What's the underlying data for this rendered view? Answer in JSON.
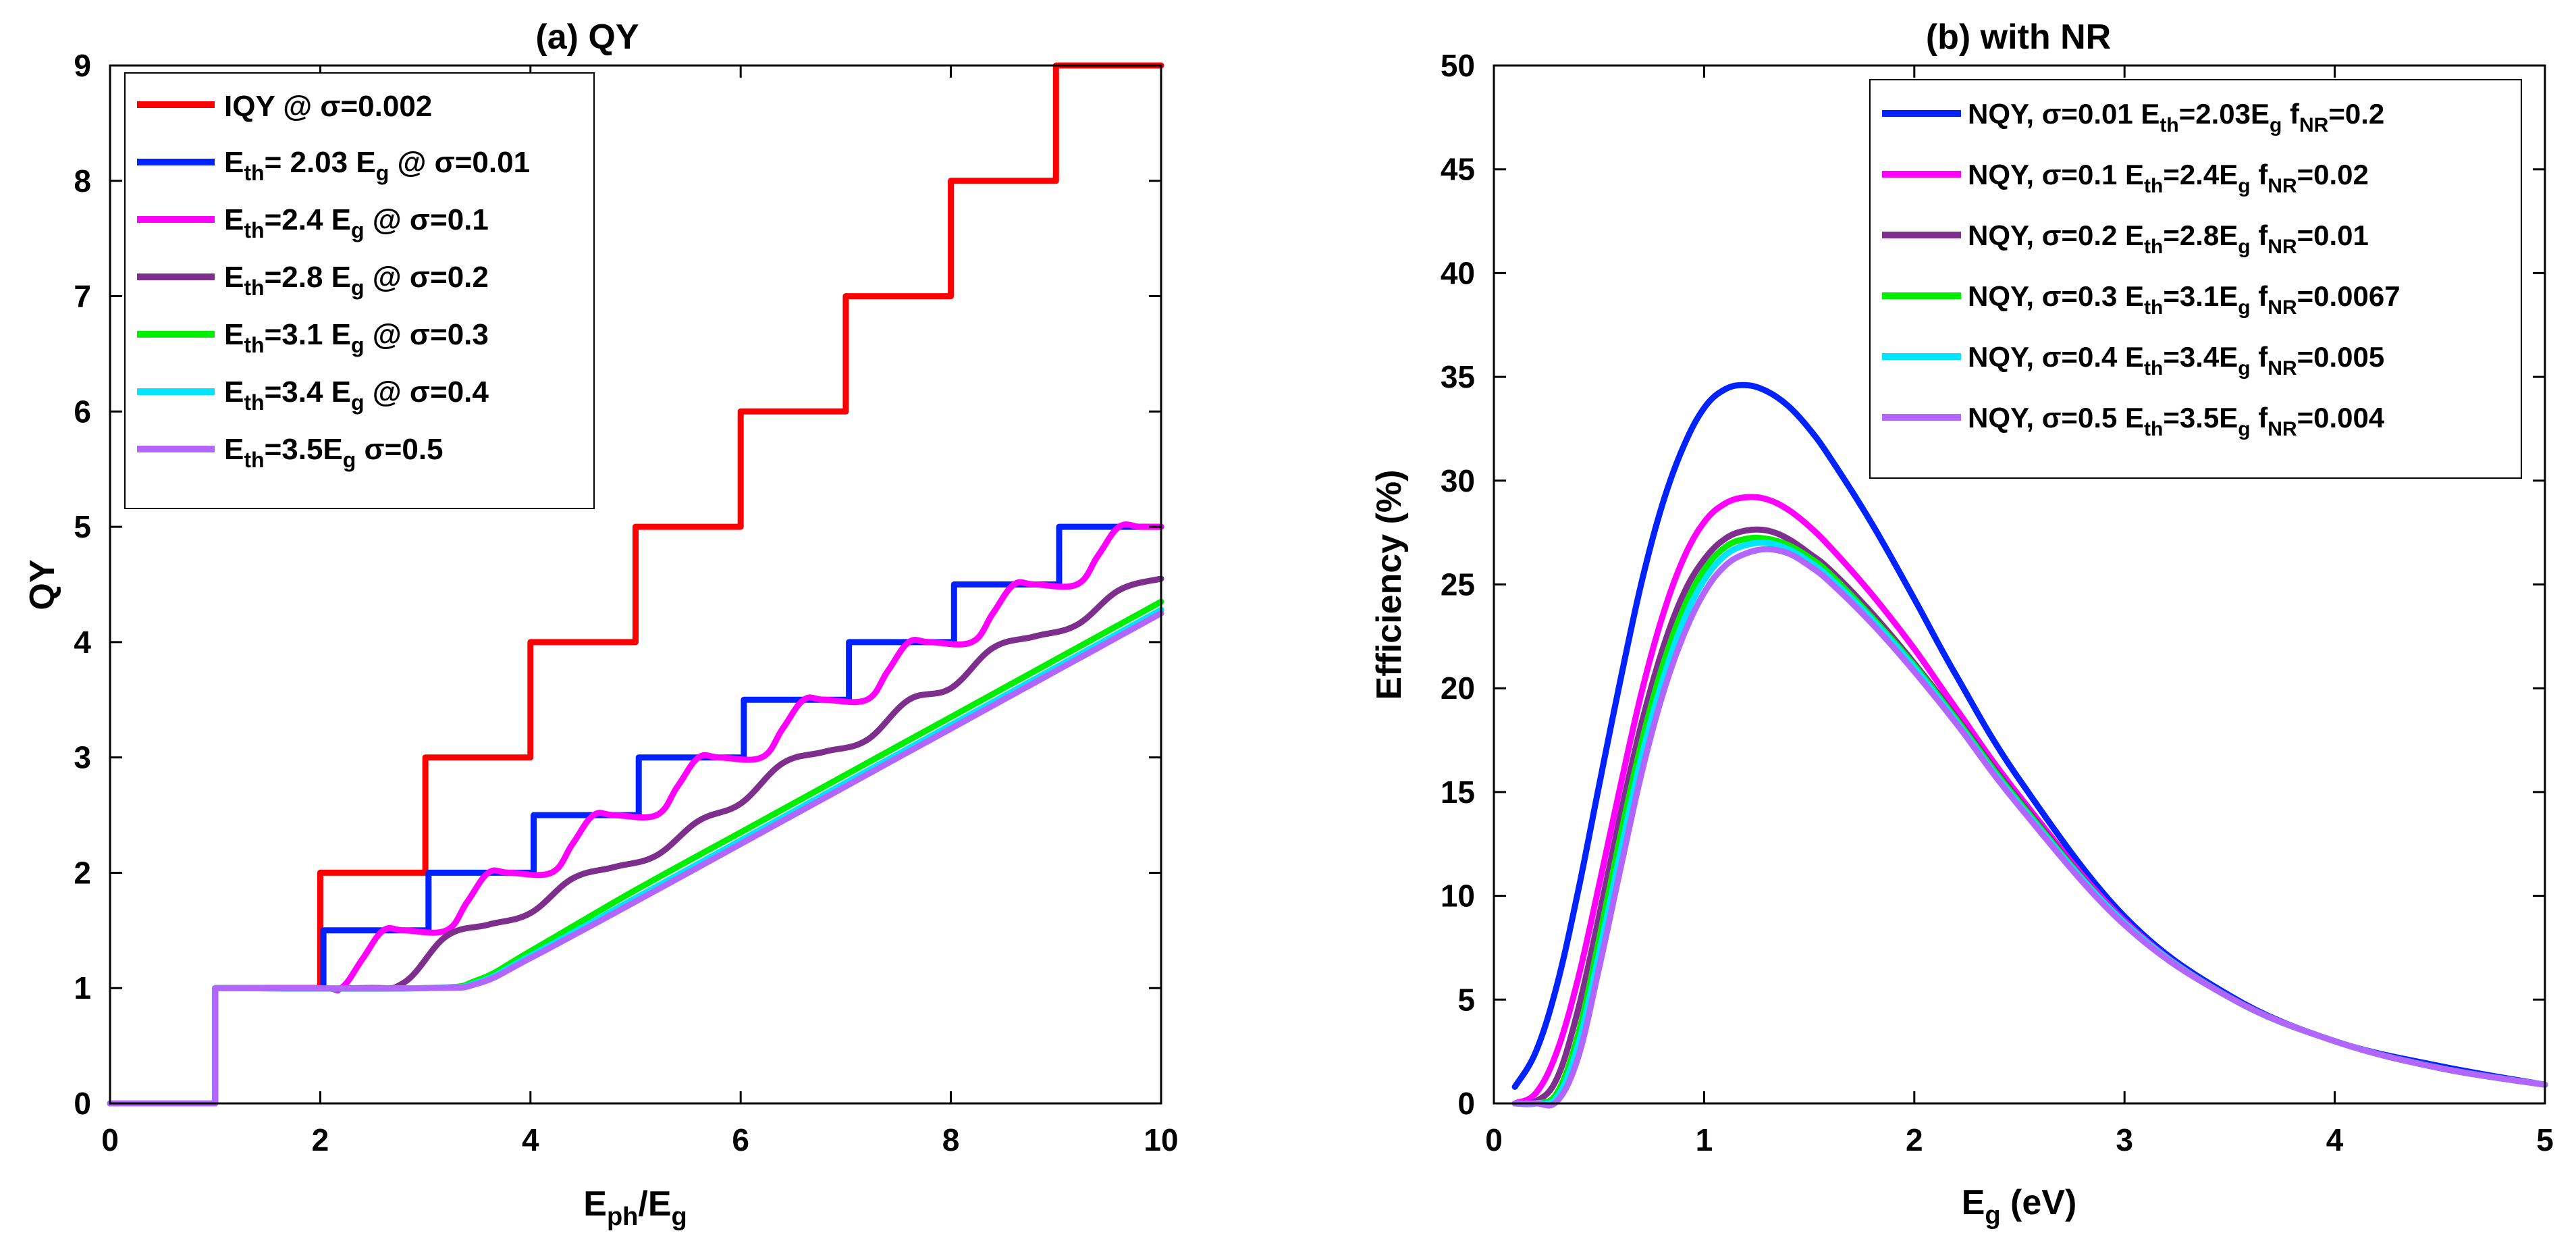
{
  "chart_data": [
    {
      "type": "line",
      "title": "(a) QY",
      "xlabel": "E_ph/E_g",
      "ylabel": "QY",
      "xlim": [
        0,
        10
      ],
      "ylim": [
        0,
        9
      ],
      "xticks": [
        0,
        2,
        4,
        6,
        8,
        10
      ],
      "yticks": [
        0,
        1,
        2,
        3,
        4,
        5,
        6,
        7,
        8,
        9
      ],
      "grid": false,
      "legend_position": "top-left",
      "series": [
        {
          "name": "IQY @ σ=0.002",
          "color": "#ff0000",
          "label": "IQY @ σ=0.002",
          "x": [
            0,
            1,
            1,
            2,
            2,
            3,
            3,
            4,
            4,
            5,
            5,
            6,
            6,
            7,
            7,
            8,
            8,
            9,
            9,
            10
          ],
          "y": [
            0,
            0,
            1,
            1,
            2,
            2,
            3,
            3,
            4,
            4,
            5,
            5,
            6,
            6,
            7,
            7,
            8,
            8,
            9,
            9
          ]
        },
        {
          "name": "Eth= 2.03 Eg @ σ=0.01",
          "color": "#0022ff",
          "label_base": "E",
          "label_sub": "th",
          "label_mid": "= 2.03 E",
          "label_sub2": "g",
          "label_tail": " @ σ=0.01",
          "x": [
            0,
            1,
            1,
            2.03,
            2.03,
            3.03,
            3.03,
            4.03,
            4.03,
            5.03,
            5.03,
            6.03,
            6.03,
            7.03,
            7.03,
            8.03,
            8.03,
            9.03,
            9.03,
            10
          ],
          "y": [
            0,
            0,
            1,
            1,
            1.5,
            1.5,
            2,
            2,
            2.5,
            2.5,
            3,
            3,
            3.5,
            3.5,
            4,
            4,
            4.5,
            4.5,
            5,
            5
          ]
        },
        {
          "name": "Eth=2.4 Eg @ σ=0.1",
          "color": "#ff00ff",
          "label_base": "E",
          "label_sub": "th",
          "label_mid": "=2.4 E",
          "label_sub2": "g",
          "label_tail": " @ σ=0.1",
          "x": [
            0,
            1,
            1,
            2.0,
            2.2,
            2.4,
            2.6,
            2.8,
            3.2,
            3.4,
            3.6,
            3.8,
            4.2,
            4.4,
            4.6,
            4.8,
            5.2,
            5.4,
            5.6,
            5.8,
            6.2,
            6.4,
            6.6,
            6.8,
            7.2,
            7.4,
            7.6,
            7.8,
            8.2,
            8.4,
            8.6,
            8.8,
            9.2,
            9.4,
            9.6,
            9.8,
            10
          ],
          "y": [
            0,
            0,
            1,
            1,
            1.0,
            1.25,
            1.5,
            1.5,
            1.5,
            1.75,
            2.0,
            2.0,
            2.0,
            2.25,
            2.5,
            2.5,
            2.5,
            2.75,
            3.0,
            3.0,
            3.0,
            3.25,
            3.5,
            3.5,
            3.5,
            3.75,
            4.0,
            4.0,
            4.0,
            4.25,
            4.5,
            4.5,
            4.5,
            4.75,
            5.0,
            5.0,
            5.0
          ]
        },
        {
          "name": "Eth=2.8 Eg @ σ=0.2",
          "color": "#7e2f8e",
          "label_base": "E",
          "label_sub": "th",
          "label_mid": "=2.8 E",
          "label_sub2": "g",
          "label_tail": " @ σ=0.2",
          "x": [
            0,
            1,
            1,
            2.4,
            2.8,
            3.2,
            3.6,
            4.0,
            4.4,
            4.8,
            5.2,
            5.6,
            6.0,
            6.4,
            6.8,
            7.2,
            7.6,
            8.0,
            8.4,
            8.8,
            9.2,
            9.6,
            10
          ],
          "y": [
            0,
            0,
            1,
            1,
            1.05,
            1.45,
            1.55,
            1.65,
            1.95,
            2.05,
            2.15,
            2.45,
            2.6,
            2.95,
            3.05,
            3.15,
            3.5,
            3.6,
            3.95,
            4.05,
            4.15,
            4.45,
            4.55
          ]
        },
        {
          "name": "Eth=3.1 Eg @ σ=0.3",
          "color": "#00ee00",
          "label_base": "E",
          "label_sub": "th",
          "label_mid": "=3.1 E",
          "label_sub2": "g",
          "label_tail": " @ σ=0.3",
          "x": [
            0,
            1,
            1,
            3.0,
            3.5,
            4.0,
            5.0,
            6.0,
            7.0,
            8.0,
            9.0,
            10
          ],
          "y": [
            0,
            0,
            1,
            1,
            1.07,
            1.32,
            1.85,
            2.35,
            2.85,
            3.35,
            3.85,
            4.35
          ]
        },
        {
          "name": "Eth=3.4 Eg @ σ=0.4",
          "color": "#00e5ff",
          "label_base": "E",
          "label_sub": "th",
          "label_mid": "=3.4 E",
          "label_sub2": "g",
          "label_tail": " @ σ=0.4",
          "x": [
            0,
            1,
            1,
            3.0,
            3.5,
            4.0,
            5.0,
            6.0,
            7.0,
            8.0,
            9.0,
            10
          ],
          "y": [
            0,
            0,
            1,
            1,
            1.05,
            1.28,
            1.78,
            2.28,
            2.78,
            3.28,
            3.78,
            4.28
          ]
        },
        {
          "name": "Eth=3.5Eg σ=0.5",
          "color": "#b366ff",
          "label_base": "E",
          "label_sub": "th",
          "label_mid": "=3.5E",
          "label_sub2": "g",
          "label_tail": " σ=0.5",
          "x": [
            0,
            1,
            1,
            3.0,
            3.5,
            4.0,
            5.0,
            6.0,
            7.0,
            8.0,
            9.0,
            10
          ],
          "y": [
            0,
            0,
            1,
            1,
            1.04,
            1.26,
            1.75,
            2.25,
            2.75,
            3.25,
            3.75,
            4.25
          ]
        }
      ]
    },
    {
      "type": "line",
      "title": "(b) with NR",
      "xlabel": "E_g (eV)",
      "ylabel": "Efficiency (%)",
      "xlim": [
        0,
        5
      ],
      "ylim": [
        0,
        50
      ],
      "xticks": [
        0,
        1,
        2,
        3,
        4,
        5
      ],
      "yticks": [
        0,
        5,
        10,
        15,
        20,
        25,
        30,
        35,
        40,
        45,
        50
      ],
      "grid": false,
      "legend_position": "top-right",
      "series": [
        {
          "name": "NQY, σ=0.01 Eth=2.03Eg fNR=0.2",
          "color": "#0022ff",
          "label_pre": "NQY, σ=0.01 E",
          "label_s1": "th",
          "label_m1": "=2.03E",
          "label_s2": "g",
          "label_m2": " f",
          "label_s3": "NR",
          "label_tail": "=0.2",
          "x": [
            0.1,
            0.2,
            0.3,
            0.4,
            0.5,
            0.6,
            0.7,
            0.8,
            0.9,
            1.0,
            1.1,
            1.2,
            1.3,
            1.4,
            1.5,
            1.6,
            1.8,
            2.0,
            2.2,
            2.5,
            3.0,
            3.5,
            4.0,
            4.5,
            5.0
          ],
          "y": [
            0.8,
            2.5,
            5.7,
            10.2,
            15.3,
            20.3,
            25.0,
            28.8,
            31.6,
            33.5,
            34.4,
            34.6,
            34.3,
            33.6,
            32.5,
            31.1,
            27.9,
            24.3,
            20.6,
            15.6,
            9.0,
            5.2,
            3.0,
            1.8,
            0.9
          ]
        },
        {
          "name": "NQY, σ=0.1 Eth=2.4Eg fNR=0.02",
          "color": "#ff00ff",
          "label_pre": "NQY, σ=0.1 E",
          "label_s1": "th",
          "label_m1": "=2.4E",
          "label_s2": "g",
          "label_m2": " f",
          "label_s3": "NR",
          "label_tail": "=0.02",
          "x": [
            0.1,
            0.2,
            0.3,
            0.4,
            0.5,
            0.6,
            0.7,
            0.8,
            0.9,
            1.0,
            1.1,
            1.2,
            1.3,
            1.4,
            1.5,
            1.6,
            1.8,
            2.0,
            2.2,
            2.5,
            3.0,
            3.5,
            4.0,
            4.5,
            5.0
          ],
          "y": [
            0.0,
            0.5,
            2.5,
            6.0,
            10.5,
            15.2,
            19.7,
            23.4,
            26.2,
            28.0,
            28.9,
            29.2,
            29.1,
            28.6,
            27.8,
            26.8,
            24.5,
            21.9,
            19.0,
            14.8,
            8.8,
            5.1,
            3.0,
            1.7,
            0.9
          ]
        },
        {
          "name": "NQY, σ=0.2 Eth=2.8Eg fNR=0.01",
          "color": "#7e2f8e",
          "label_pre": "NQY, σ=0.2 E",
          "label_s1": "th",
          "label_m1": "=2.8E",
          "label_s2": "g",
          "label_m2": " f",
          "label_s3": "NR",
          "label_tail": "=0.01",
          "x": [
            0.1,
            0.2,
            0.3,
            0.4,
            0.5,
            0.6,
            0.7,
            0.8,
            0.9,
            1.0,
            1.1,
            1.2,
            1.3,
            1.4,
            1.5,
            1.6,
            1.8,
            2.0,
            2.2,
            2.5,
            3.0,
            3.5,
            4.0,
            4.5,
            5.0
          ],
          "y": [
            0.0,
            0.1,
            1.2,
            4.5,
            9.0,
            13.8,
            18.2,
            21.8,
            24.5,
            26.2,
            27.2,
            27.6,
            27.6,
            27.2,
            26.5,
            25.7,
            23.6,
            21.2,
            18.6,
            14.6,
            8.7,
            5.1,
            3.0,
            1.7,
            0.9
          ]
        },
        {
          "name": "NQY, σ=0.3 Eth=3.1Eg fNR=0.0067",
          "color": "#00ee00",
          "label_pre": "NQY, σ=0.3 E",
          "label_s1": "th",
          "label_m1": "=3.1E",
          "label_s2": "g",
          "label_m2": " f",
          "label_s3": "NR",
          "label_tail": "=0.0067",
          "x": [
            0.1,
            0.2,
            0.3,
            0.4,
            0.5,
            0.6,
            0.7,
            0.8,
            0.9,
            1.0,
            1.1,
            1.2,
            1.3,
            1.4,
            1.5,
            1.6,
            1.8,
            2.0,
            2.2,
            2.5,
            3.0,
            3.5,
            4.0,
            4.5,
            5.0
          ],
          "y": [
            0.0,
            0.0,
            0.5,
            3.3,
            7.9,
            12.8,
            17.3,
            21.0,
            23.8,
            25.7,
            26.8,
            27.2,
            27.2,
            26.9,
            26.3,
            25.5,
            23.4,
            21.1,
            18.5,
            14.5,
            8.7,
            5.1,
            3.0,
            1.7,
            0.9
          ]
        },
        {
          "name": "NQY, σ=0.4 Eth=3.4Eg fNR=0.005",
          "color": "#00e5ff",
          "label_pre": "NQY, σ=0.4 E",
          "label_s1": "th",
          "label_m1": "=3.4E",
          "label_s2": "g",
          "label_m2": " f",
          "label_s3": "NR",
          "label_tail": "=0.005",
          "x": [
            0.1,
            0.2,
            0.3,
            0.4,
            0.5,
            0.6,
            0.7,
            0.8,
            0.9,
            1.0,
            1.1,
            1.2,
            1.3,
            1.4,
            1.5,
            1.6,
            1.8,
            2.0,
            2.2,
            2.5,
            3.0,
            3.5,
            4.0,
            4.5,
            5.0
          ],
          "y": [
            0.0,
            0.0,
            0.3,
            2.8,
            7.2,
            12.0,
            16.6,
            20.3,
            23.2,
            25.2,
            26.4,
            26.9,
            27.0,
            26.7,
            26.1,
            25.3,
            23.3,
            21.0,
            18.4,
            14.4,
            8.7,
            5.1,
            3.0,
            1.7,
            0.9
          ]
        },
        {
          "name": "NQY, σ=0.5 Eth=3.5Eg fNR=0.004",
          "color": "#b366ff",
          "label_pre": "NQY, σ=0.5 E",
          "label_s1": "th",
          "label_m1": "=3.5E",
          "label_s2": "g",
          "label_m2": " f",
          "label_s3": "NR",
          "label_tail": "=0.004",
          "x": [
            0.1,
            0.2,
            0.3,
            0.4,
            0.5,
            0.6,
            0.7,
            0.8,
            0.9,
            1.0,
            1.1,
            1.2,
            1.3,
            1.4,
            1.5,
            1.6,
            1.8,
            2.0,
            2.2,
            2.5,
            3.0,
            3.5,
            4.0,
            4.5,
            5.0
          ],
          "y": [
            0.0,
            0.0,
            0.1,
            2.2,
            6.5,
            11.2,
            15.8,
            19.6,
            22.5,
            24.6,
            25.9,
            26.5,
            26.7,
            26.5,
            25.9,
            25.1,
            23.1,
            20.8,
            18.3,
            14.3,
            8.6,
            5.1,
            3.0,
            1.7,
            0.9
          ]
        }
      ]
    }
  ],
  "axis_label_parts": {
    "a_x_base": "E",
    "a_x_sub": "ph",
    "a_x_mid": "/E",
    "a_x_sub2": "g",
    "b_x_base": "E",
    "b_x_sub": "g",
    "b_x_tail": " (eV)"
  }
}
